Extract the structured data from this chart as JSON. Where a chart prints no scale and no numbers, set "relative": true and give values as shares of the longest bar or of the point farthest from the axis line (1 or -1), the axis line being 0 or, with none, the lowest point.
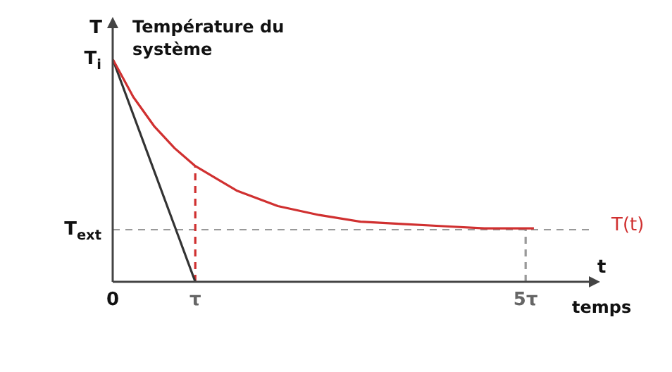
{
  "chart_data": {
    "type": "line",
    "relative": true,
    "xlabel": "t",
    "ylabel": "T",
    "annotations": [
      "Température du système",
      "temps",
      {
        "text": "T$_{i}$",
        "x": 0,
        "y": 1
      }
    ],
    "xlim": [
      0,
      5.8
    ],
    "xticks": [
      0,
      {
        "value": 1,
        "label": "τ"
      },
      {
        "value": 5,
        "label": "5τ"
      }
    ],
    "legend": false,
    "marker": "none",
    "line_style": "solid",
    "ref_lines": [
      {
        "axis": "y",
        "value": 0.234,
        "label": "T$_{ext}$",
        "color": "#999999",
        "line_style": "dashed"
      }
    ],
    "series": [
      {
        "name": "T(t)",
        "color": "#d03030",
        "x": [
          0,
          0.25,
          0.5,
          0.75,
          1,
          1.5,
          2,
          2.5,
          3,
          3.5,
          4,
          4.5,
          5,
          5.1
        ],
        "values": [
          1,
          0.83,
          0.7,
          0.6,
          0.52,
          0.41,
          0.34,
          0.3,
          0.27,
          0.26,
          0.25,
          0.24,
          0.24,
          0.24
        ]
      },
      {
        "color": "#333333",
        "x": [
          0,
          1
        ],
        "values": [
          1,
          0
        ]
      },
      {
        "color": "#d03030",
        "x": [
          1,
          1
        ],
        "values": [
          0,
          0.52
        ],
        "line_style": "dashed"
      },
      {
        "color": "#999999",
        "x": [
          5,
          5
        ],
        "values": [
          0,
          0.24
        ],
        "line_style": "dashed"
      }
    ]
  }
}
